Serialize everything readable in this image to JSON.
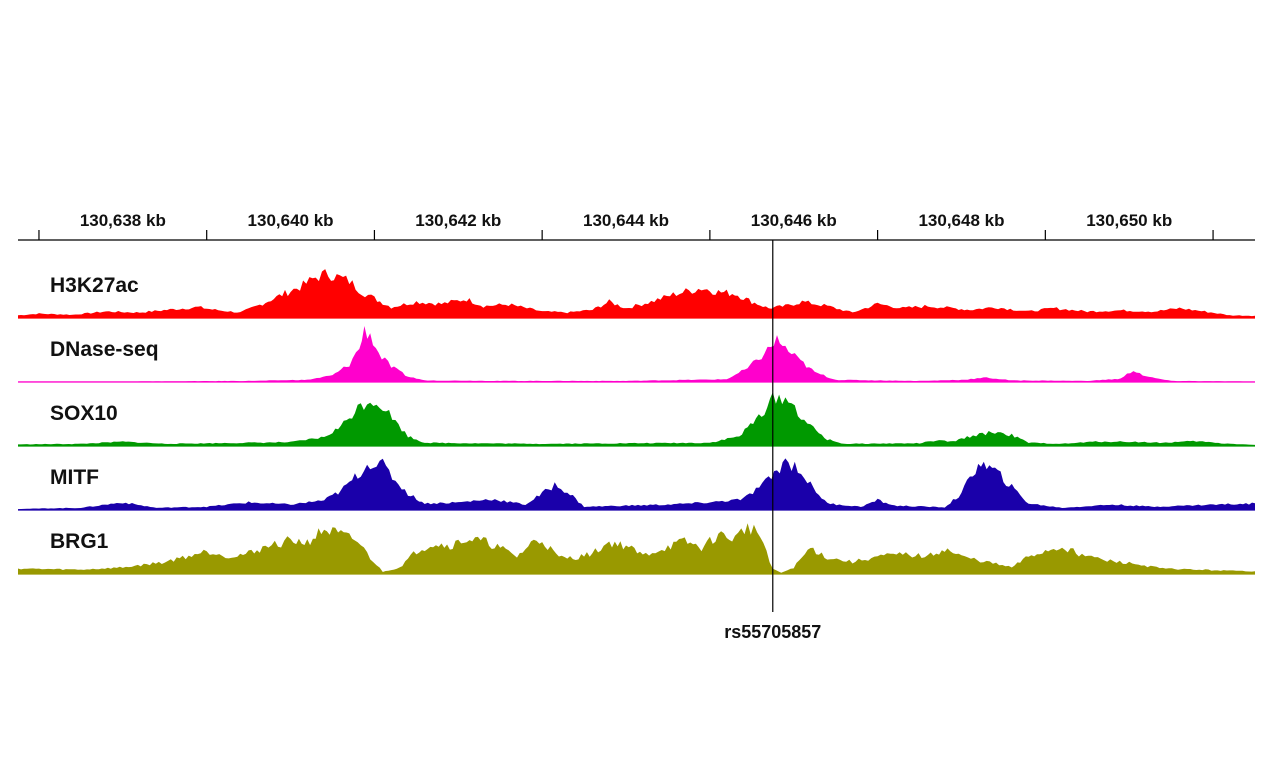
{
  "chart_data": {
    "type": "area",
    "title": "",
    "xlabel": "",
    "ylabel": "",
    "x_unit": "kb",
    "xlim": [
      130636.75,
      130651.5
    ],
    "x_ticks": [
      {
        "value": 130638,
        "label": "130,638 kb"
      },
      {
        "value": 130640,
        "label": "130,640 kb"
      },
      {
        "value": 130642,
        "label": "130,642 kb"
      },
      {
        "value": 130644,
        "label": "130,644 kb"
      },
      {
        "value": 130646,
        "label": "130,646 kb"
      },
      {
        "value": 130648,
        "label": "130,648 kb"
      },
      {
        "value": 130650,
        "label": "130,650 kb"
      }
    ],
    "minor_ticks": [
      130637,
      130639,
      130641,
      130643,
      130645,
      130647,
      130649,
      130651
    ],
    "marker": {
      "x": 130645.75,
      "label": "rs55705857"
    },
    "grid": false,
    "legend": "none",
    "tracks": [
      {
        "name": "H3K27ac",
        "color": "#ff0000",
        "ylim": [
          0,
          1
        ],
        "points": [
          [
            130636.75,
            0.05
          ],
          [
            130637.0,
            0.08
          ],
          [
            130637.4,
            0.06
          ],
          [
            130637.8,
            0.12
          ],
          [
            130638.2,
            0.1
          ],
          [
            130638.6,
            0.16
          ],
          [
            130638.9,
            0.2
          ],
          [
            130639.1,
            0.15
          ],
          [
            130639.4,
            0.1
          ],
          [
            130639.6,
            0.22
          ],
          [
            130639.8,
            0.36
          ],
          [
            130640.0,
            0.5
          ],
          [
            130640.15,
            0.6
          ],
          [
            130640.3,
            0.75
          ],
          [
            130640.45,
            0.82
          ],
          [
            130640.55,
            0.76
          ],
          [
            130640.7,
            0.68
          ],
          [
            130640.85,
            0.48
          ],
          [
            130641.0,
            0.36
          ],
          [
            130641.2,
            0.2
          ],
          [
            130641.5,
            0.3
          ],
          [
            130641.8,
            0.26
          ],
          [
            130642.1,
            0.35
          ],
          [
            130642.3,
            0.22
          ],
          [
            130642.6,
            0.25
          ],
          [
            130643.0,
            0.12
          ],
          [
            130643.3,
            0.1
          ],
          [
            130643.6,
            0.15
          ],
          [
            130643.8,
            0.3
          ],
          [
            130644.0,
            0.18
          ],
          [
            130644.3,
            0.3
          ],
          [
            130644.6,
            0.45
          ],
          [
            130644.9,
            0.55
          ],
          [
            130645.1,
            0.48
          ],
          [
            130645.3,
            0.45
          ],
          [
            130645.5,
            0.3
          ],
          [
            130645.7,
            0.18
          ],
          [
            130645.9,
            0.22
          ],
          [
            130646.1,
            0.3
          ],
          [
            130646.4,
            0.22
          ],
          [
            130646.7,
            0.1
          ],
          [
            130647.0,
            0.26
          ],
          [
            130647.3,
            0.18
          ],
          [
            130647.6,
            0.22
          ],
          [
            130647.9,
            0.18
          ],
          [
            130648.1,
            0.15
          ],
          [
            130648.4,
            0.2
          ],
          [
            130648.8,
            0.12
          ],
          [
            130649.1,
            0.18
          ],
          [
            130649.5,
            0.12
          ],
          [
            130649.9,
            0.14
          ],
          [
            130650.3,
            0.12
          ],
          [
            130650.6,
            0.18
          ],
          [
            130650.9,
            0.12
          ],
          [
            130651.2,
            0.05
          ],
          [
            130651.5,
            0.04
          ]
        ]
      },
      {
        "name": "DNase-seq",
        "color": "#ff00cc",
        "ylim": [
          0,
          1
        ],
        "points": [
          [
            130636.75,
            0.0
          ],
          [
            130638.0,
            0.01
          ],
          [
            130639.5,
            0.02
          ],
          [
            130640.2,
            0.04
          ],
          [
            130640.5,
            0.12
          ],
          [
            130640.7,
            0.32
          ],
          [
            130640.82,
            0.62
          ],
          [
            130640.88,
            0.95
          ],
          [
            130640.95,
            0.88
          ],
          [
            130641.05,
            0.52
          ],
          [
            130641.2,
            0.28
          ],
          [
            130641.4,
            0.1
          ],
          [
            130641.6,
            0.03
          ],
          [
            130642.5,
            0.02
          ],
          [
            130644.0,
            0.02
          ],
          [
            130645.2,
            0.05
          ],
          [
            130645.45,
            0.25
          ],
          [
            130645.65,
            0.52
          ],
          [
            130645.8,
            0.78
          ],
          [
            130645.9,
            0.62
          ],
          [
            130646.05,
            0.42
          ],
          [
            130646.25,
            0.18
          ],
          [
            130646.5,
            0.04
          ],
          [
            130647.5,
            0.02
          ],
          [
            130648.0,
            0.04
          ],
          [
            130648.3,
            0.08
          ],
          [
            130648.6,
            0.03
          ],
          [
            130649.5,
            0.02
          ],
          [
            130649.9,
            0.06
          ],
          [
            130650.05,
            0.22
          ],
          [
            130650.2,
            0.1
          ],
          [
            130650.5,
            0.02
          ],
          [
            130651.5,
            0.01
          ]
        ]
      },
      {
        "name": "SOX10",
        "color": "#009900",
        "ylim": [
          0,
          1
        ],
        "points": [
          [
            130636.75,
            0.03
          ],
          [
            130637.5,
            0.04
          ],
          [
            130638.0,
            0.08
          ],
          [
            130638.5,
            0.04
          ],
          [
            130639.5,
            0.06
          ],
          [
            130640.0,
            0.07
          ],
          [
            130640.4,
            0.16
          ],
          [
            130640.6,
            0.36
          ],
          [
            130640.8,
            0.7
          ],
          [
            130640.95,
            0.85
          ],
          [
            130641.1,
            0.74
          ],
          [
            130641.25,
            0.45
          ],
          [
            130641.4,
            0.18
          ],
          [
            130641.6,
            0.06
          ],
          [
            130642.2,
            0.05
          ],
          [
            130643.0,
            0.04
          ],
          [
            130644.0,
            0.05
          ],
          [
            130645.0,
            0.06
          ],
          [
            130645.35,
            0.18
          ],
          [
            130645.55,
            0.48
          ],
          [
            130645.75,
            0.86
          ],
          [
            130645.9,
            0.9
          ],
          [
            130646.05,
            0.62
          ],
          [
            130646.2,
            0.36
          ],
          [
            130646.4,
            0.12
          ],
          [
            130646.6,
            0.04
          ],
          [
            130647.5,
            0.05
          ],
          [
            130647.7,
            0.1
          ],
          [
            130647.9,
            0.08
          ],
          [
            130648.1,
            0.18
          ],
          [
            130648.4,
            0.26
          ],
          [
            130648.6,
            0.2
          ],
          [
            130648.8,
            0.06
          ],
          [
            130649.2,
            0.04
          ],
          [
            130649.6,
            0.08
          ],
          [
            130650.0,
            0.08
          ],
          [
            130650.4,
            0.06
          ],
          [
            130650.8,
            0.09
          ],
          [
            130651.1,
            0.05
          ],
          [
            130651.5,
            0.02
          ]
        ]
      },
      {
        "name": "MITF",
        "color": "#1a00aa",
        "ylim": [
          0,
          1
        ],
        "points": [
          [
            130636.75,
            0.02
          ],
          [
            130637.5,
            0.04
          ],
          [
            130638.0,
            0.14
          ],
          [
            130638.4,
            0.04
          ],
          [
            130639.0,
            0.06
          ],
          [
            130639.5,
            0.14
          ],
          [
            130640.0,
            0.1
          ],
          [
            130640.4,
            0.18
          ],
          [
            130640.6,
            0.35
          ],
          [
            130640.8,
            0.65
          ],
          [
            130640.95,
            0.88
          ],
          [
            130641.1,
            0.82
          ],
          [
            130641.25,
            0.55
          ],
          [
            130641.4,
            0.3
          ],
          [
            130641.6,
            0.12
          ],
          [
            130642.0,
            0.14
          ],
          [
            130642.4,
            0.2
          ],
          [
            130642.8,
            0.1
          ],
          [
            130643.0,
            0.3
          ],
          [
            130643.15,
            0.46
          ],
          [
            130643.3,
            0.34
          ],
          [
            130643.5,
            0.06
          ],
          [
            130644.0,
            0.08
          ],
          [
            130644.5,
            0.1
          ],
          [
            130645.0,
            0.14
          ],
          [
            130645.4,
            0.2
          ],
          [
            130645.7,
            0.55
          ],
          [
            130645.9,
            0.9
          ],
          [
            130646.05,
            0.78
          ],
          [
            130646.2,
            0.46
          ],
          [
            130646.4,
            0.12
          ],
          [
            130646.8,
            0.06
          ],
          [
            130647.0,
            0.18
          ],
          [
            130647.2,
            0.08
          ],
          [
            130647.8,
            0.05
          ],
          [
            130648.0,
            0.3
          ],
          [
            130648.2,
            0.86
          ],
          [
            130648.4,
            0.72
          ],
          [
            130648.6,
            0.42
          ],
          [
            130648.8,
            0.12
          ],
          [
            130649.2,
            0.04
          ],
          [
            130649.8,
            0.1
          ],
          [
            130650.3,
            0.06
          ],
          [
            130651.0,
            0.1
          ],
          [
            130651.5,
            0.12
          ]
        ]
      },
      {
        "name": "BRG1",
        "color": "#999900",
        "ylim": [
          0,
          1
        ],
        "points": [
          [
            130636.75,
            0.1
          ],
          [
            130637.5,
            0.08
          ],
          [
            130638.0,
            0.12
          ],
          [
            130638.5,
            0.22
          ],
          [
            130639.0,
            0.42
          ],
          [
            130639.3,
            0.32
          ],
          [
            130639.5,
            0.38
          ],
          [
            130639.7,
            0.5
          ],
          [
            130640.0,
            0.62
          ],
          [
            130640.2,
            0.58
          ],
          [
            130640.4,
            0.82
          ],
          [
            130640.6,
            0.72
          ],
          [
            130640.8,
            0.6
          ],
          [
            130640.95,
            0.3
          ],
          [
            130641.1,
            0.04
          ],
          [
            130641.3,
            0.12
          ],
          [
            130641.5,
            0.42
          ],
          [
            130641.7,
            0.56
          ],
          [
            130641.9,
            0.52
          ],
          [
            130642.1,
            0.64
          ],
          [
            130642.3,
            0.6
          ],
          [
            130642.5,
            0.48
          ],
          [
            130642.7,
            0.32
          ],
          [
            130642.9,
            0.6
          ],
          [
            130643.0,
            0.62
          ],
          [
            130643.2,
            0.3
          ],
          [
            130643.4,
            0.3
          ],
          [
            130643.6,
            0.38
          ],
          [
            130643.8,
            0.58
          ],
          [
            130644.0,
            0.52
          ],
          [
            130644.2,
            0.34
          ],
          [
            130644.5,
            0.5
          ],
          [
            130644.7,
            0.6
          ],
          [
            130644.9,
            0.48
          ],
          [
            130645.1,
            0.72
          ],
          [
            130645.3,
            0.65
          ],
          [
            130645.45,
            0.88
          ],
          [
            130645.6,
            0.72
          ],
          [
            130645.75,
            0.1
          ],
          [
            130645.85,
            0.02
          ],
          [
            130646.0,
            0.12
          ],
          [
            130646.2,
            0.48
          ],
          [
            130646.4,
            0.3
          ],
          [
            130646.7,
            0.22
          ],
          [
            130647.0,
            0.32
          ],
          [
            130647.3,
            0.36
          ],
          [
            130647.6,
            0.32
          ],
          [
            130647.8,
            0.46
          ],
          [
            130648.0,
            0.32
          ],
          [
            130648.3,
            0.22
          ],
          [
            130648.6,
            0.12
          ],
          [
            130648.8,
            0.32
          ],
          [
            130649.0,
            0.42
          ],
          [
            130649.2,
            0.5
          ],
          [
            130649.4,
            0.38
          ],
          [
            130649.7,
            0.25
          ],
          [
            130650.0,
            0.2
          ],
          [
            130650.4,
            0.1
          ],
          [
            130650.8,
            0.08
          ],
          [
            130651.2,
            0.06
          ],
          [
            130651.5,
            0.05
          ]
        ]
      }
    ]
  }
}
